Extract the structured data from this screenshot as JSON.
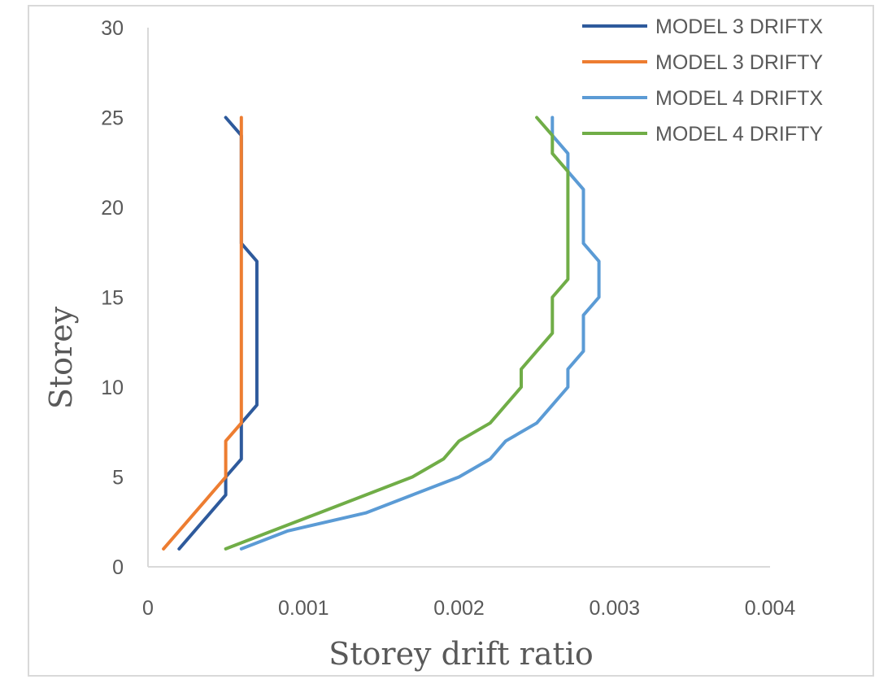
{
  "chart_data": {
    "type": "line",
    "title": "",
    "xlabel": "Storey drift ratio",
    "ylabel": "Storey",
    "xlim": [
      0,
      0.004
    ],
    "ylim": [
      0,
      30
    ],
    "x_ticks": [
      "0",
      "0.001",
      "0.002",
      "0.003",
      "0.004"
    ],
    "y_ticks": [
      "0",
      "5",
      "10",
      "15",
      "20",
      "25",
      "30"
    ],
    "grid": false,
    "legend_position": "top-right",
    "series": [
      {
        "name": "MODEL 3 DRIFTX",
        "color": "#2e5a9c",
        "points": [
          [
            0.0002,
            1
          ],
          [
            0.0003,
            2
          ],
          [
            0.0004,
            3
          ],
          [
            0.0005,
            4
          ],
          [
            0.0005,
            5
          ],
          [
            0.0006,
            6
          ],
          [
            0.0006,
            7
          ],
          [
            0.0006,
            8
          ],
          [
            0.0007,
            9
          ],
          [
            0.0007,
            10
          ],
          [
            0.0007,
            11
          ],
          [
            0.0007,
            12
          ],
          [
            0.0007,
            13
          ],
          [
            0.0007,
            14
          ],
          [
            0.0007,
            15
          ],
          [
            0.0007,
            16
          ],
          [
            0.0007,
            17
          ],
          [
            0.0006,
            18
          ],
          [
            0.0006,
            19
          ],
          [
            0.0006,
            20
          ],
          [
            0.0006,
            21
          ],
          [
            0.0006,
            22
          ],
          [
            0.0006,
            23
          ],
          [
            0.0006,
            24
          ],
          [
            0.0005,
            25
          ]
        ]
      },
      {
        "name": "MODEL 3 DRIFTY",
        "color": "#ed7d31",
        "points": [
          [
            0.0001,
            1
          ],
          [
            0.0002,
            2
          ],
          [
            0.0003,
            3
          ],
          [
            0.0004,
            4
          ],
          [
            0.0005,
            5
          ],
          [
            0.0005,
            6
          ],
          [
            0.0005,
            7
          ],
          [
            0.0006,
            8
          ],
          [
            0.0006,
            9
          ],
          [
            0.0006,
            10
          ],
          [
            0.0006,
            11
          ],
          [
            0.0006,
            12
          ],
          [
            0.0006,
            13
          ],
          [
            0.0006,
            14
          ],
          [
            0.0006,
            15
          ],
          [
            0.0006,
            16
          ],
          [
            0.0006,
            17
          ],
          [
            0.0006,
            18
          ],
          [
            0.0006,
            19
          ],
          [
            0.0006,
            20
          ],
          [
            0.0006,
            21
          ],
          [
            0.0006,
            22
          ],
          [
            0.0006,
            23
          ],
          [
            0.0006,
            24
          ],
          [
            0.0006,
            25
          ]
        ]
      },
      {
        "name": "MODEL 4 DRIFTX",
        "color": "#5b9bd5",
        "points": [
          [
            0.0006,
            1
          ],
          [
            0.0009,
            2
          ],
          [
            0.0014,
            3
          ],
          [
            0.0017,
            4
          ],
          [
            0.002,
            5
          ],
          [
            0.0022,
            6
          ],
          [
            0.0023,
            7
          ],
          [
            0.0025,
            8
          ],
          [
            0.0026,
            9
          ],
          [
            0.0027,
            10
          ],
          [
            0.0027,
            11
          ],
          [
            0.0028,
            12
          ],
          [
            0.0028,
            13
          ],
          [
            0.0028,
            14
          ],
          [
            0.0029,
            15
          ],
          [
            0.0029,
            16
          ],
          [
            0.0029,
            17
          ],
          [
            0.0028,
            18
          ],
          [
            0.0028,
            19
          ],
          [
            0.0028,
            20
          ],
          [
            0.0028,
            21
          ],
          [
            0.0027,
            22
          ],
          [
            0.0027,
            23
          ],
          [
            0.0026,
            24
          ],
          [
            0.0026,
            25
          ]
        ]
      },
      {
        "name": "MODEL 4 DRIFTY",
        "color": "#70ad47",
        "points": [
          [
            0.0005,
            1
          ],
          [
            0.0008,
            2
          ],
          [
            0.0011,
            3
          ],
          [
            0.0014,
            4
          ],
          [
            0.0017,
            5
          ],
          [
            0.0019,
            6
          ],
          [
            0.002,
            7
          ],
          [
            0.0022,
            8
          ],
          [
            0.0023,
            9
          ],
          [
            0.0024,
            10
          ],
          [
            0.0024,
            11
          ],
          [
            0.0025,
            12
          ],
          [
            0.0026,
            13
          ],
          [
            0.0026,
            14
          ],
          [
            0.0026,
            15
          ],
          [
            0.0027,
            16
          ],
          [
            0.0027,
            17
          ],
          [
            0.0027,
            18
          ],
          [
            0.0027,
            19
          ],
          [
            0.0027,
            20
          ],
          [
            0.0027,
            21
          ],
          [
            0.0027,
            22
          ],
          [
            0.0026,
            23
          ],
          [
            0.0026,
            24
          ],
          [
            0.0025,
            25
          ]
        ]
      }
    ]
  }
}
